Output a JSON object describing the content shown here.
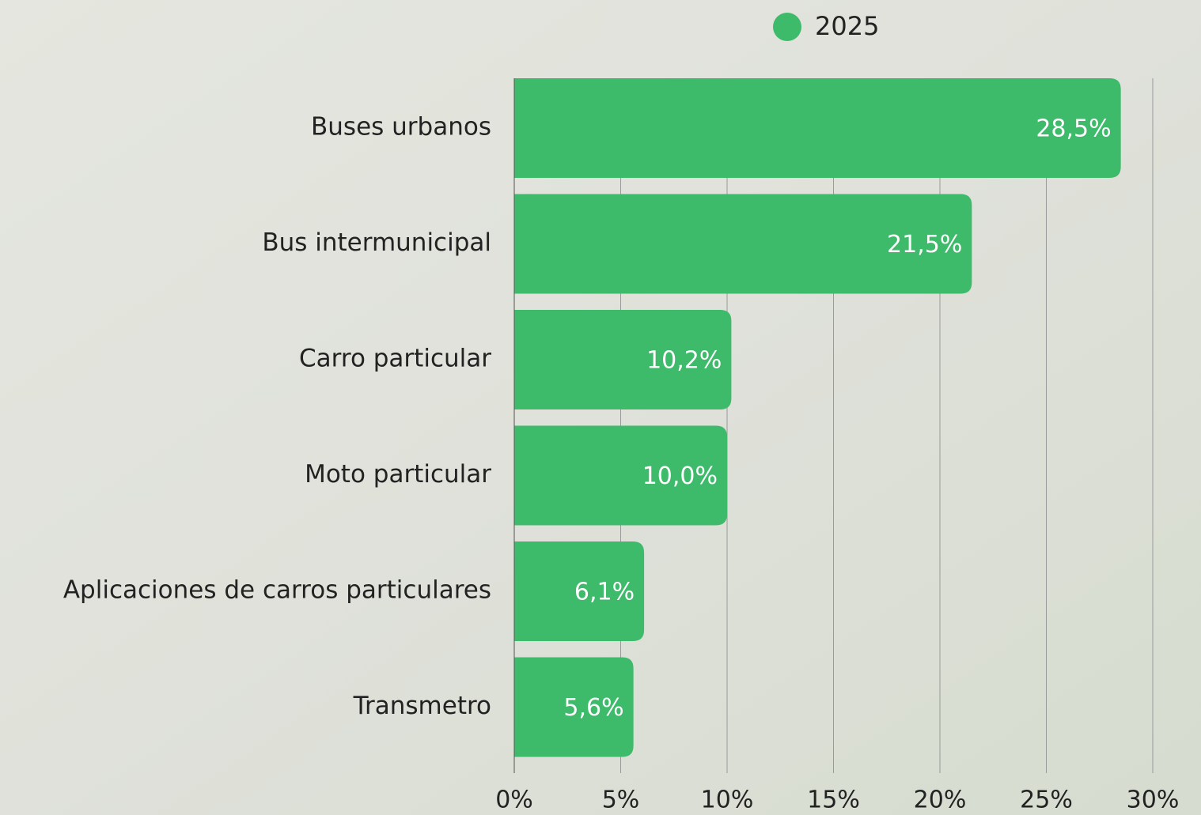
{
  "chart_data": {
    "type": "bar",
    "orientation": "horizontal",
    "categories": [
      "Buses urbanos",
      "Bus intermunicipal",
      "Carro particular",
      "Moto particular",
      "Aplicaciones de carros particulares",
      "Transmetro"
    ],
    "series": [
      {
        "name": "2025",
        "color": "#3dba6a",
        "values": [
          28.5,
          21.5,
          10.2,
          10.0,
          6.1,
          5.6
        ],
        "value_labels": [
          "28,5%",
          "21,5%",
          "10,2%",
          "10,0%",
          "6,1%",
          "5,6%"
        ]
      }
    ],
    "xlim": [
      0,
      30
    ],
    "xticks": [
      {
        "value": 0,
        "label": "0%"
      },
      {
        "value": 5,
        "label": "5%"
      },
      {
        "value": 10,
        "label": "10%"
      },
      {
        "value": 15,
        "label": "15%"
      },
      {
        "value": 20,
        "label": "20%"
      },
      {
        "value": 25,
        "label": "25%"
      },
      {
        "value": 30,
        "label": "30%"
      }
    ],
    "grid": true,
    "legend": "top"
  }
}
